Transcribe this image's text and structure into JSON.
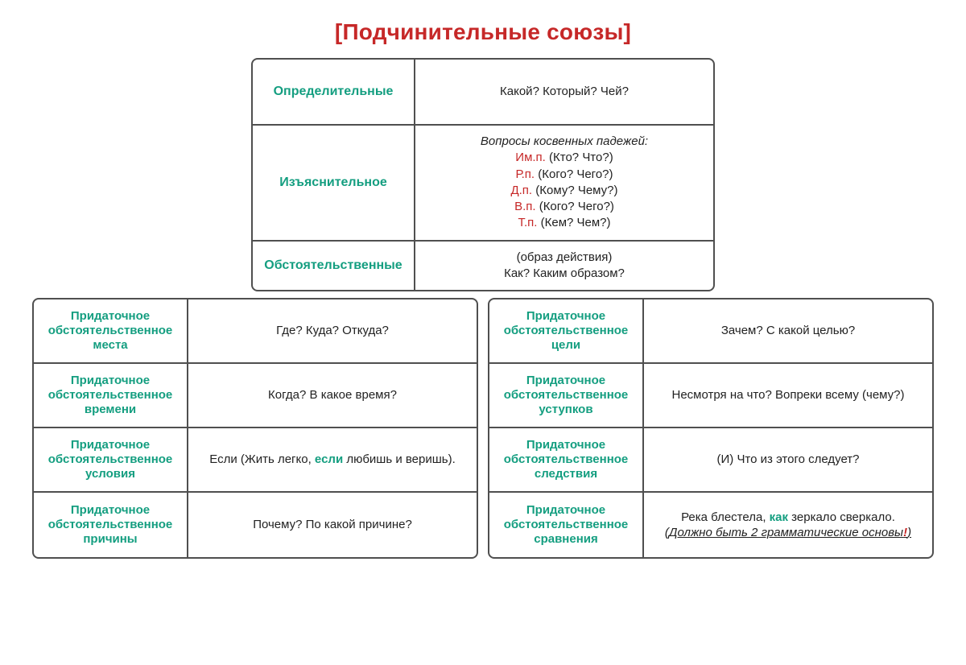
{
  "colors": {
    "title": "#c62828",
    "accent_green": "#149e80",
    "accent_red": "#c62828",
    "border": "#4f4f4f",
    "text": "#222222",
    "background": "#ffffff"
  },
  "title": "[Подчинительные союзы]",
  "top_table": {
    "rows": [
      {
        "label": "Определительные",
        "content": "Какой? Который? Чей?",
        "tall": true
      },
      {
        "label": "Изъяснительное",
        "intro_italic": "Вопросы косвенных падежей:",
        "cases": [
          {
            "abbr": "Им.п.",
            "q": "(Кто? Что?)"
          },
          {
            "abbr": "Р.п.",
            "q": "(Кого? Чего?)"
          },
          {
            "abbr": "Д.п.",
            "q": "(Кому? Чему?)"
          },
          {
            "abbr": "В.п.",
            "q": "(Кого? Чего?)"
          },
          {
            "abbr": "Т.п.",
            "q": "(Кем? Чем?)"
          }
        ]
      },
      {
        "label": "Обстоятельственные",
        "lines": [
          "(образ действия)",
          "Как? Каким образом?"
        ]
      }
    ]
  },
  "bottom_left": [
    {
      "label": "Придаточное обстоятельственное места",
      "content": "Где? Куда? Откуда?"
    },
    {
      "label": "Придаточное обстоятельственное времени",
      "content": "Когда? В какое время?"
    },
    {
      "label": "Придаточное обстоятельственное условия",
      "rich": {
        "before": "Если (Жить легко, ",
        "emph": "если",
        "after": " любишь и веришь)."
      }
    },
    {
      "label": "Придаточное обстоятельственное причины",
      "content": "Почему? По какой причине?"
    }
  ],
  "bottom_right": [
    {
      "label": "Придаточное обстоятельственное цели",
      "content": "Зачем? С какой целью?"
    },
    {
      "label": "Придаточное обстоятельственное уступков",
      "content": "Несмотря на что? Вопреки всему (чему?)"
    },
    {
      "label": "Придаточное обстоятельственное следствия",
      "content": "(И) Что из этого следует?"
    },
    {
      "label": "Придаточное обстоятельственное сравнения",
      "rich2": {
        "line1_before": "Река блестела, ",
        "line1_emph": "как",
        "line1_after": " зеркало сверкало.",
        "line2_text": "(Должно быть 2 грамматические основы",
        "line2_excl": "!",
        "line2_close": ")"
      }
    }
  ]
}
